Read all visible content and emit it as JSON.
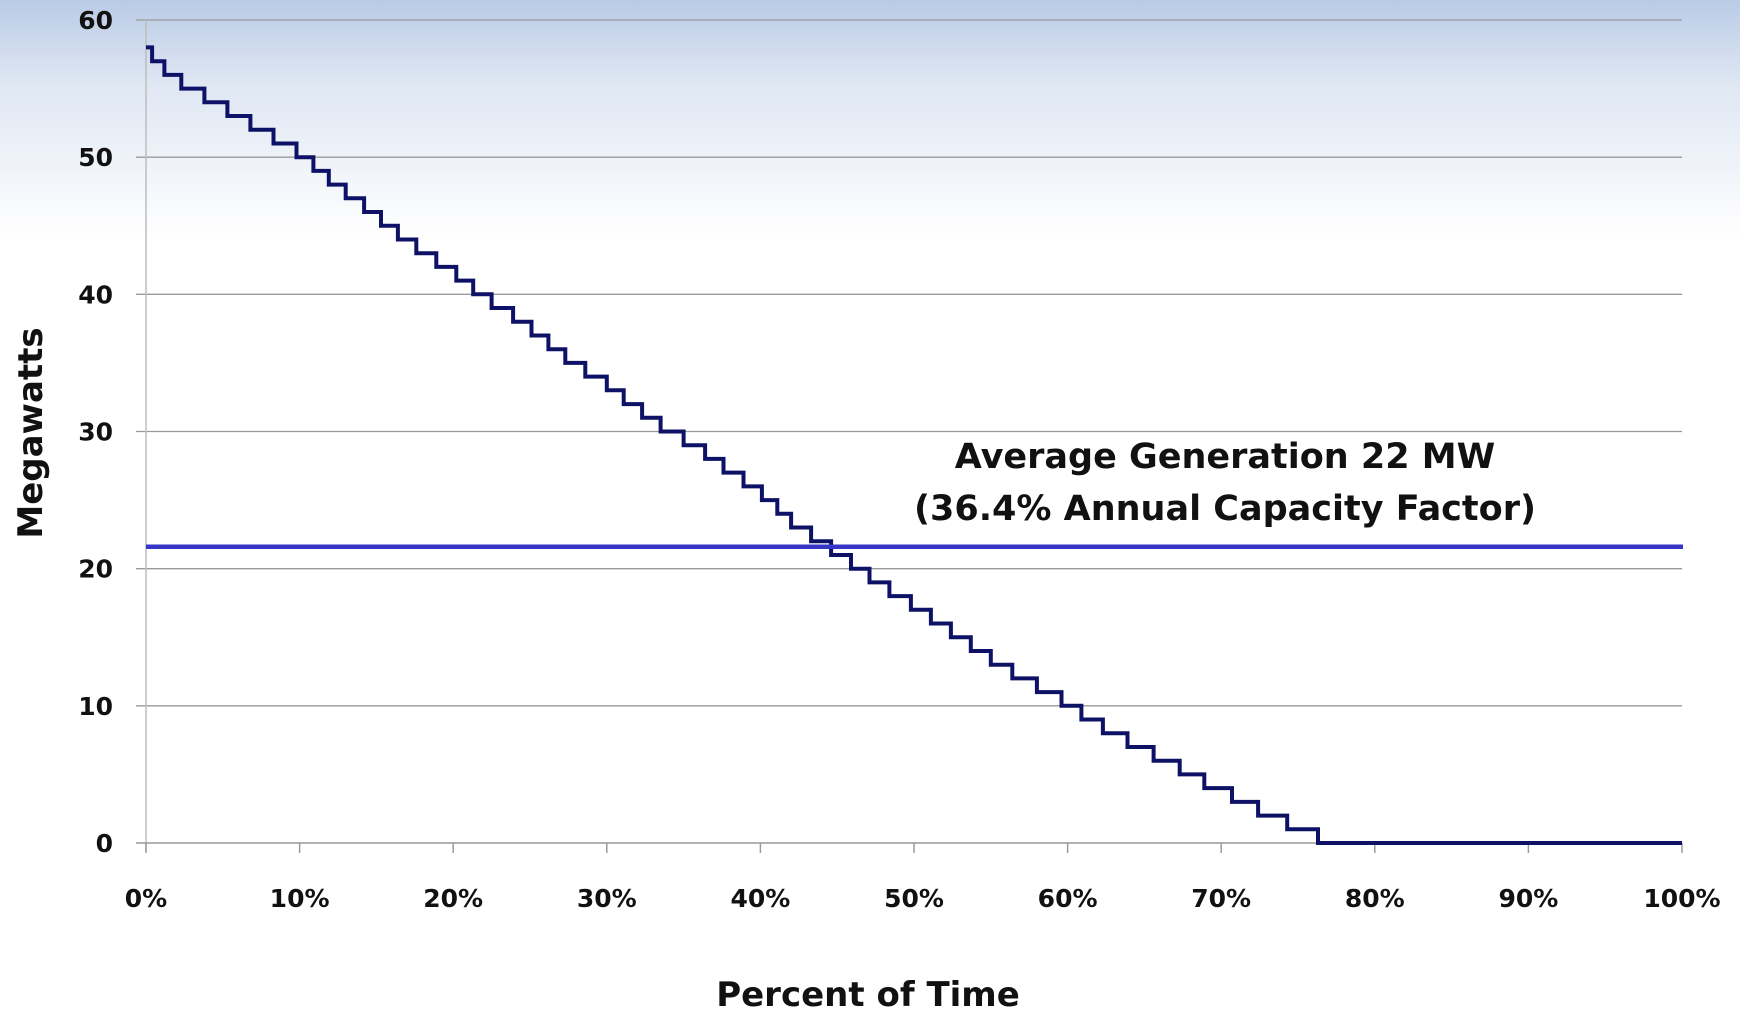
{
  "chart_data": {
    "type": "line",
    "title": "",
    "xlabel": "Percent of Time",
    "ylabel": "Megawatts",
    "xlim": [
      0,
      100
    ],
    "ylim": [
      0,
      60
    ],
    "x_tick_labels": [
      "0%",
      "10%",
      "20%",
      "30%",
      "40%",
      "50%",
      "60%",
      "70%",
      "80%",
      "90%",
      "100%"
    ],
    "y_tick_labels": [
      "0",
      "10",
      "20",
      "30",
      "40",
      "50",
      "60"
    ],
    "grid": true,
    "series": [
      {
        "style": "step",
        "color": "#0d1266",
        "x": [
          0,
          0.4,
          1.2,
          2.3,
          3.8,
          5.3,
          6.8,
          8.3,
          9.8,
          10.9,
          11.9,
          13.0,
          14.2,
          15.3,
          16.4,
          17.6,
          18.9,
          20.2,
          21.3,
          22.5,
          23.9,
          25.1,
          26.2,
          27.3,
          28.6,
          30.0,
          31.1,
          32.3,
          33.5,
          35.0,
          36.4,
          37.6,
          38.9,
          40.1,
          41.1,
          42.0,
          43.3,
          44.6,
          45.9,
          47.1,
          48.4,
          49.8,
          51.1,
          52.4,
          53.7,
          55.0,
          56.4,
          58.0,
          59.6,
          60.9,
          62.3,
          63.9,
          65.6,
          67.3,
          68.9,
          70.7,
          72.4,
          74.3,
          76.3,
          78.3,
          81.3,
          85.3,
          100
        ],
        "y": [
          58,
          57,
          56,
          55,
          54,
          53,
          52,
          51,
          50,
          49,
          48,
          47,
          46,
          45,
          44,
          43,
          42,
          41,
          40,
          39,
          38,
          37,
          36,
          35,
          34,
          33,
          32,
          31,
          30,
          29,
          28,
          27,
          26,
          25,
          24,
          23,
          22,
          21,
          20,
          19,
          18,
          17,
          16,
          15,
          14,
          13,
          12,
          11,
          10,
          9,
          8,
          7,
          6,
          5,
          4,
          3,
          2,
          1,
          0,
          0,
          0,
          0,
          0
        ]
      },
      {
        "style": "horizontal-line",
        "color": "#3535c8",
        "y": 21.6
      }
    ],
    "annotations": [
      "Average Generation 22 MW",
      "(36.4% Annual Capacity Factor)"
    ]
  }
}
